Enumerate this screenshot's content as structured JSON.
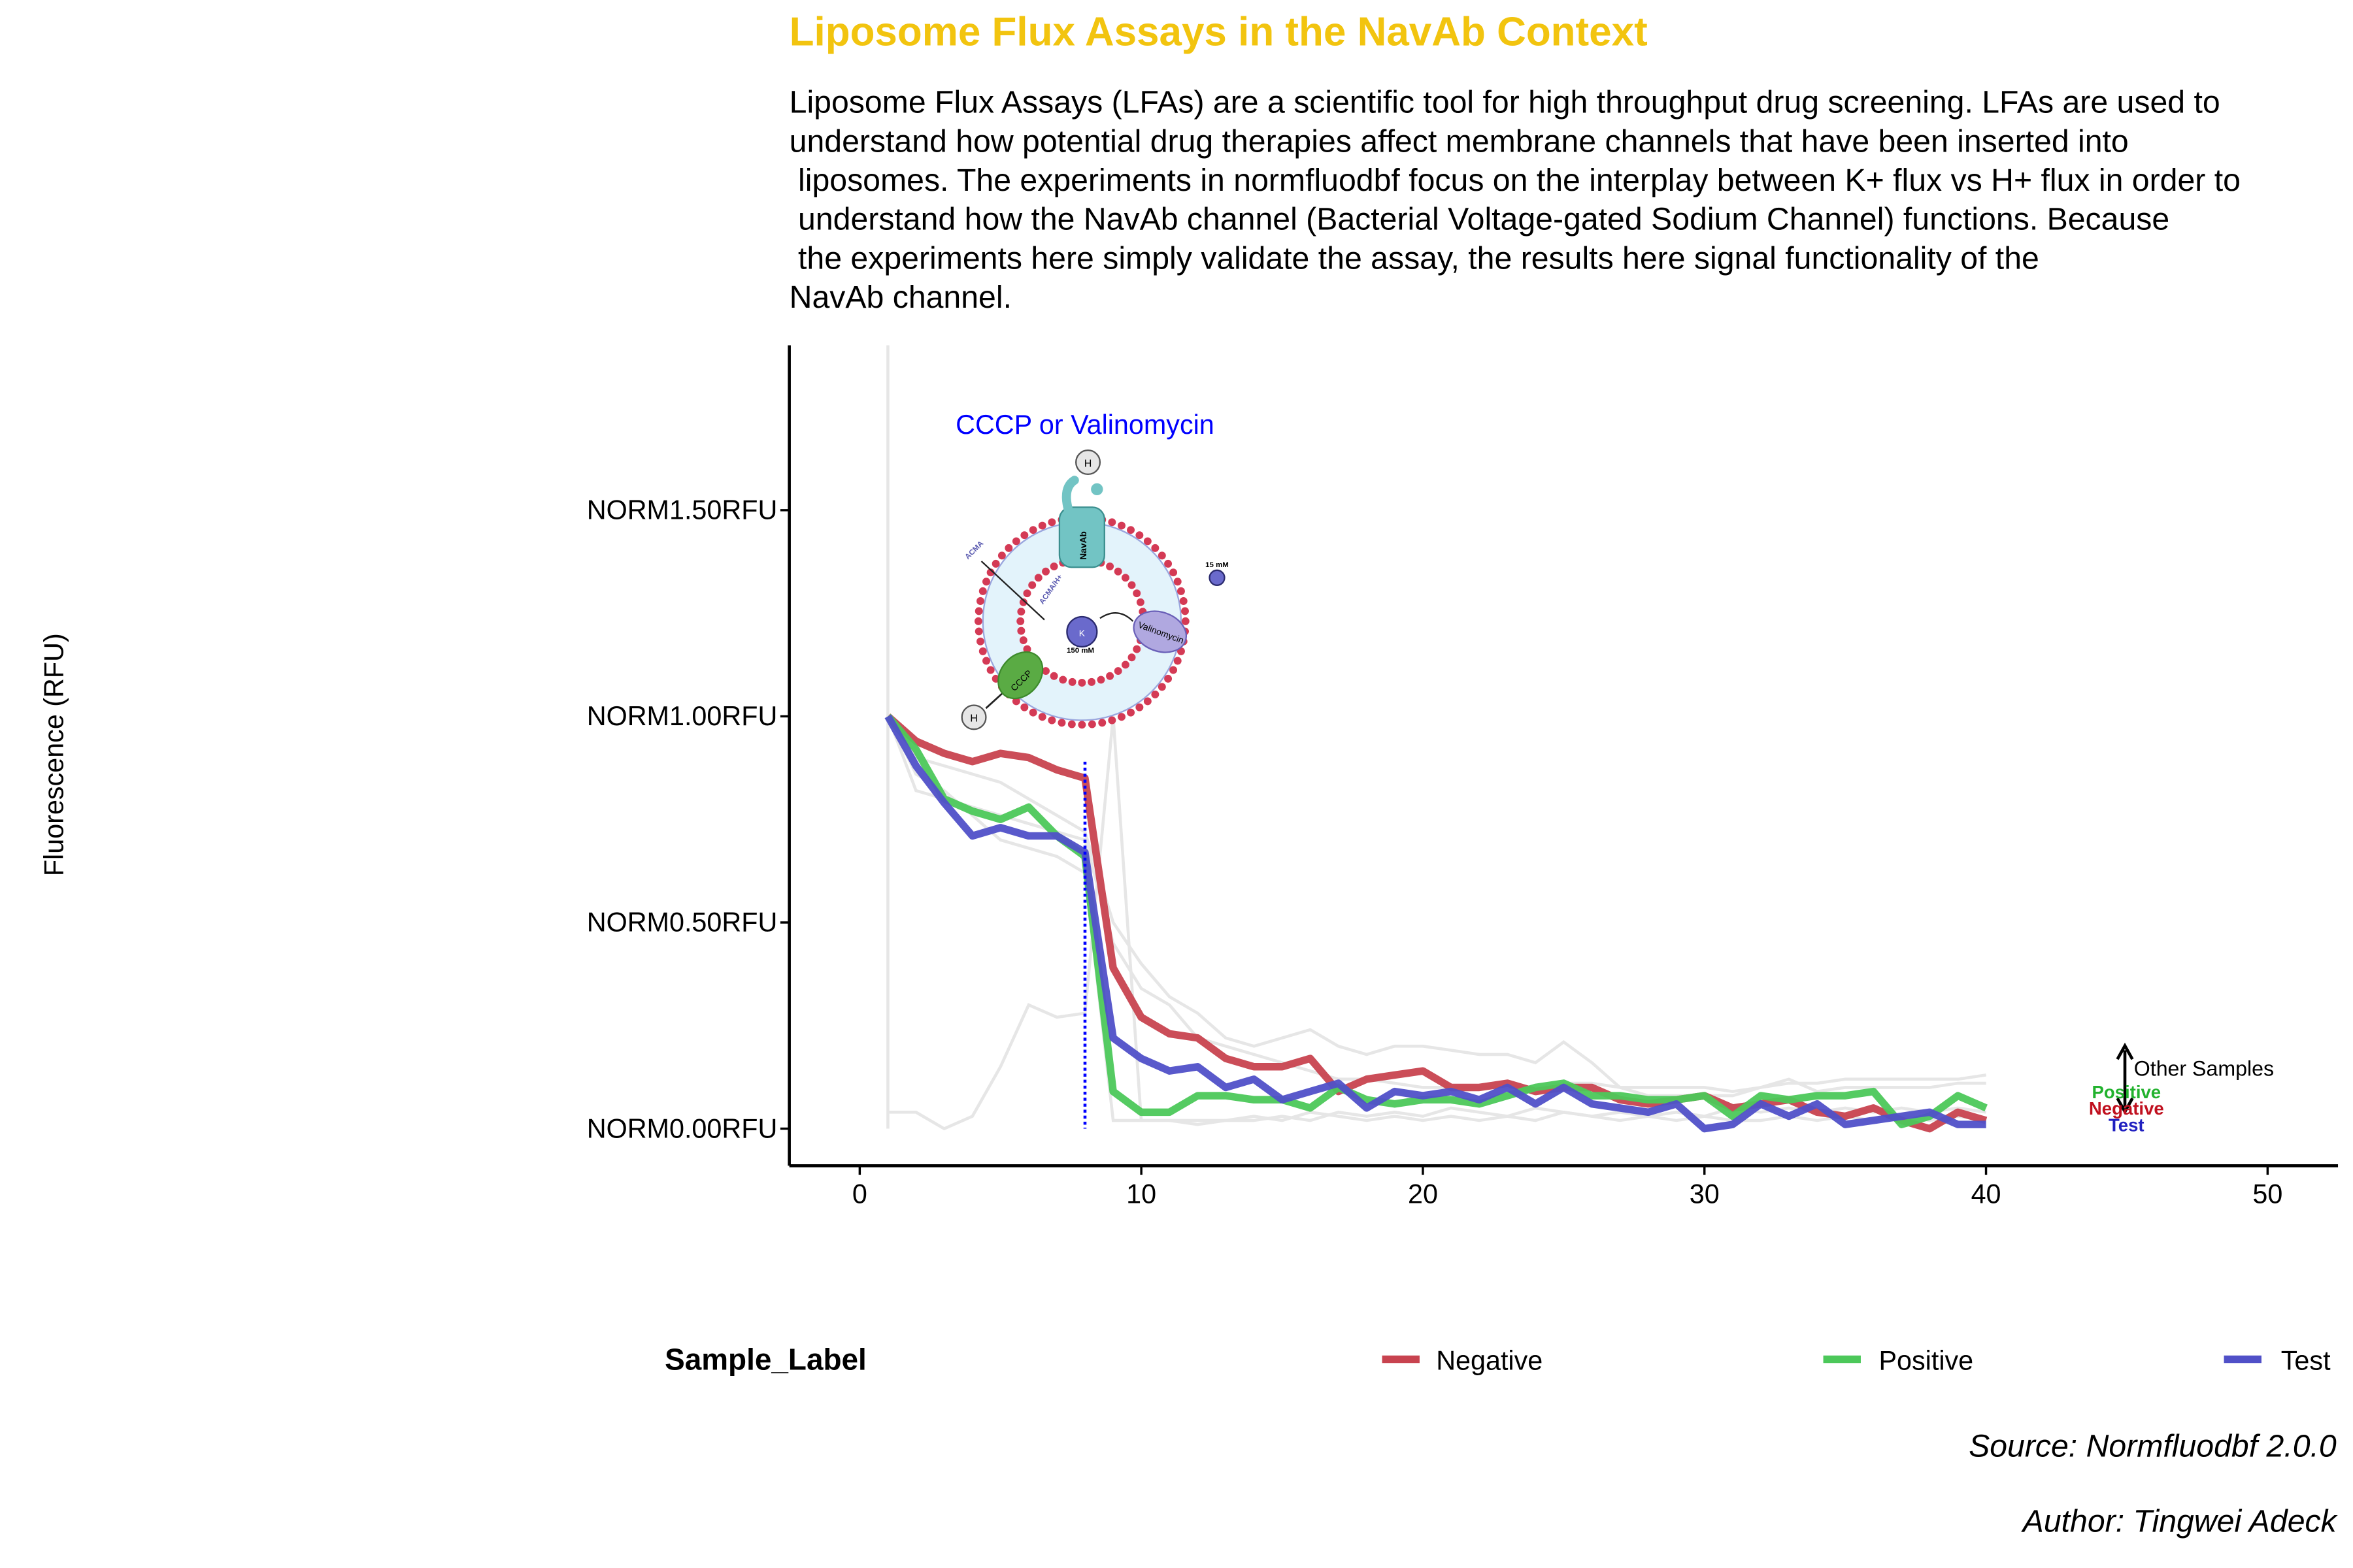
{
  "title": "Liposome Flux Assays in the NavAb Context",
  "subtitle_lines": [
    "Liposome Flux Assays (LFAs) are a scientific tool for high throughput drug screening. LFAs are used to",
    "understand how potential drug therapies affect membrane channels that have been inserted into",
    " liposomes. The experiments in normfluodbf focus on the interplay between K+ flux vs H+ flux in order to",
    " understand how the NavAb channel (Bacterial Voltage-gated Sodium Channel) functions. Because",
    " the experiments here simply validate the assay, the results here signal functionality of the",
    "NavAb channel."
  ],
  "caption": {
    "source": "Source: Normfluodbf 2.0.0",
    "author": "Author: Tingwei Adeck"
  },
  "diagram": {
    "label": "CCCP or Valinomycin",
    "navab": "NavAb",
    "cccp": "CCCP",
    "valinomycin": "Valinomycin",
    "h": "H",
    "k": "K",
    "inner_conc": "150 mM",
    "outer_conc": "15 mM",
    "acma": "ACMA",
    "acma_h": "ACMA/H+"
  },
  "chart_data": {
    "type": "line",
    "xlabel": "",
    "ylabel": "Fluorescence (RFU)",
    "xlim": [
      -2.5,
      52.5
    ],
    "ylim": [
      -0.09,
      1.9
    ],
    "x_ticks": [
      0,
      10,
      20,
      30,
      40,
      50
    ],
    "y_ticks": [
      {
        "value": 0.0,
        "label": "NORM0.00RFU"
      },
      {
        "value": 0.5,
        "label": "NORM0.50RFU"
      },
      {
        "value": 1.0,
        "label": "NORM1.00RFU"
      },
      {
        "value": 1.5,
        "label": "NORM1.50RFU"
      }
    ],
    "grid": false,
    "vline_x": 8,
    "x": [
      1,
      2,
      3,
      4,
      5,
      6,
      7,
      8,
      9,
      10,
      11,
      12,
      13,
      14,
      15,
      16,
      17,
      18,
      19,
      20,
      21,
      22,
      23,
      24,
      25,
      26,
      27,
      28,
      29,
      30,
      31,
      32,
      33,
      34,
      35,
      36,
      37,
      38,
      39,
      40
    ],
    "series": [
      {
        "name": "Negative",
        "color": "#c8434f",
        "values": [
          1.0,
          0.94,
          0.91,
          0.89,
          0.91,
          0.9,
          0.87,
          0.85,
          0.39,
          0.27,
          0.23,
          0.22,
          0.17,
          0.15,
          0.15,
          0.17,
          0.09,
          0.12,
          0.13,
          0.14,
          0.1,
          0.1,
          0.11,
          0.09,
          0.1,
          0.1,
          0.07,
          0.06,
          0.07,
          0.08,
          0.05,
          0.06,
          0.07,
          0.04,
          0.03,
          0.05,
          0.02,
          0.0,
          0.04,
          0.02
        ]
      },
      {
        "name": "Positive",
        "color": "#4cc85a",
        "values": [
          1.0,
          0.92,
          0.8,
          0.77,
          0.75,
          0.78,
          0.71,
          0.66,
          0.09,
          0.04,
          0.04,
          0.08,
          0.08,
          0.07,
          0.07,
          0.05,
          0.1,
          0.07,
          0.06,
          0.07,
          0.07,
          0.06,
          0.08,
          0.1,
          0.11,
          0.08,
          0.08,
          0.07,
          0.07,
          0.08,
          0.03,
          0.08,
          0.07,
          0.08,
          0.08,
          0.09,
          0.01,
          0.03,
          0.08,
          0.05
        ]
      },
      {
        "name": "Test",
        "color": "#5050c8",
        "values": [
          1.0,
          0.88,
          0.79,
          0.71,
          0.73,
          0.71,
          0.71,
          0.67,
          0.22,
          0.17,
          0.14,
          0.15,
          0.1,
          0.12,
          0.07,
          0.09,
          0.11,
          0.05,
          0.09,
          0.08,
          0.09,
          0.07,
          0.1,
          0.06,
          0.1,
          0.06,
          0.05,
          0.04,
          0.06,
          0.0,
          0.01,
          0.06,
          0.03,
          0.06,
          0.01,
          0.02,
          0.03,
          0.04,
          0.01,
          0.01
        ]
      }
    ],
    "other_samples": {
      "color": "#e6e6e6",
      "values": [
        [
          1.0,
          0.82,
          0.8,
          0.78,
          0.76,
          0.74,
          0.72,
          0.7,
          0.45,
          0.34,
          0.3,
          0.22,
          0.2,
          0.18,
          0.16,
          0.14,
          0.12,
          0.12,
          0.11,
          0.1,
          0.1,
          0.1,
          0.1,
          0.1,
          0.11,
          0.11,
          0.1,
          0.1,
          0.1,
          0.1,
          0.09,
          0.1,
          0.11,
          0.11,
          0.12,
          0.12,
          0.12,
          0.12,
          0.12,
          0.13
        ],
        [
          1.0,
          0.9,
          0.88,
          0.86,
          0.84,
          0.8,
          0.76,
          0.72,
          0.5,
          0.4,
          0.32,
          0.28,
          0.22,
          0.2,
          0.22,
          0.24,
          0.2,
          0.18,
          0.2,
          0.2,
          0.19,
          0.18,
          0.18,
          0.16,
          0.21,
          0.16,
          0.1,
          0.08,
          0.08,
          0.08,
          0.08,
          0.1,
          0.12,
          0.09,
          0.1,
          0.1,
          0.1,
          0.1,
          0.11,
          0.11
        ],
        [
          1.0,
          0.86,
          0.82,
          0.76,
          0.7,
          0.68,
          0.66,
          0.62,
          0.02,
          0.02,
          0.02,
          0.02,
          0.02,
          0.03,
          0.02,
          0.04,
          0.03,
          0.02,
          0.03,
          0.02,
          0.03,
          0.02,
          0.03,
          0.02,
          0.04,
          0.03,
          0.02,
          0.03,
          0.02,
          0.03,
          0.02,
          0.02,
          0.03,
          0.02,
          0.03,
          0.02,
          0.03,
          0.02,
          0.03,
          0.02
        ],
        [
          0.04,
          0.04,
          0.0,
          0.03,
          0.15,
          0.3,
          0.27,
          0.28,
          1.0,
          0.02,
          0.02,
          0.01,
          0.02,
          0.02,
          0.03,
          0.02,
          0.04,
          0.03,
          0.04,
          0.03,
          0.05,
          0.04,
          0.03,
          0.05,
          0.04,
          0.03,
          0.04,
          0.03,
          0.04,
          0.03,
          0.05,
          0.04,
          0.05,
          0.04,
          0.05,
          0.04,
          0.05,
          0.04,
          0.05,
          0.04
        ]
      ]
    },
    "annotation": {
      "other": "Other Samples",
      "positive": {
        "text": "Positive",
        "color": "#22b22e"
      },
      "negative": {
        "text": "Negative",
        "color": "#c0101f"
      },
      "test": {
        "text": "Test",
        "color": "#2020c0"
      }
    },
    "legend": {
      "title": "Sample_Label",
      "placement": "bottom",
      "entries": [
        "Negative",
        "Positive",
        "Test"
      ]
    }
  }
}
